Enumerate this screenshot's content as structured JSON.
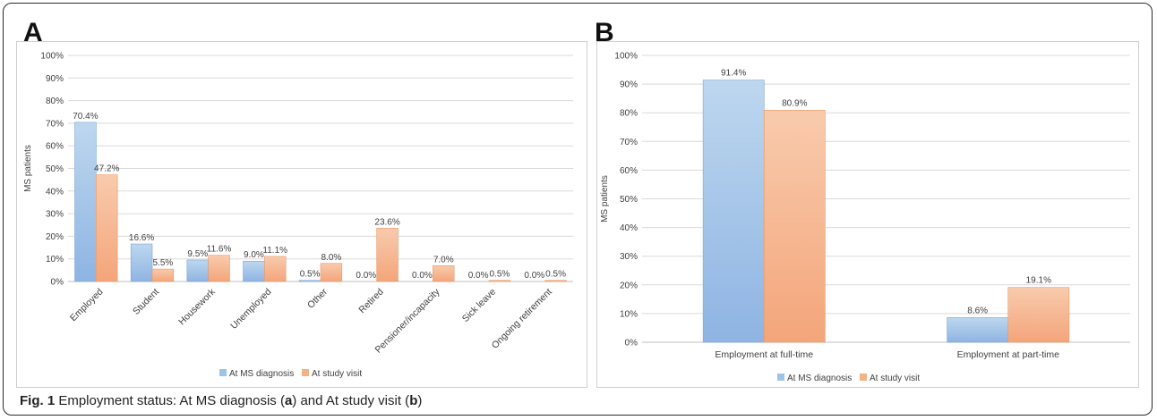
{
  "chart_data": [
    {
      "panel": "A",
      "type": "bar",
      "ylabel": "MS patients",
      "ylim": [
        0,
        100
      ],
      "y_ticks": [
        "0%",
        "10%",
        "20%",
        "30%",
        "40%",
        "50%",
        "60%",
        "70%",
        "80%",
        "90%",
        "100%"
      ],
      "categories": [
        "Employed",
        "Student",
        "Housework",
        "Unemployed",
        "Other",
        "Retired",
        "Pensioner/incapacity",
        "Sick leave",
        "Ongoing retirement"
      ],
      "series": [
        {
          "name": "At MS diagnosis",
          "color": "#9dc3e6",
          "values": [
            70.4,
            16.6,
            9.5,
            9.0,
            0.5,
            0.0,
            0.0,
            0.0,
            0.0
          ],
          "labels": [
            "70.4%",
            "16.6%",
            "9.5%",
            "9.0%",
            "0.5%",
            "0.0%",
            "0.0%",
            "0.0%",
            "0.0%"
          ]
        },
        {
          "name": "At study visit",
          "color": "#f4b183",
          "values": [
            47.2,
            5.5,
            11.6,
            11.1,
            8.0,
            23.6,
            7.0,
            0.5,
            0.5
          ],
          "labels": [
            "47.2%",
            "5.5%",
            "11.6%",
            "11.1%",
            "8.0%",
            "23.6%",
            "7.0%",
            "0.5%",
            "0.5%"
          ]
        }
      ],
      "legend_position": "bottom",
      "grid": true
    },
    {
      "panel": "B",
      "type": "bar",
      "ylabel": "MS patients",
      "ylim": [
        0,
        100
      ],
      "y_ticks": [
        "0%",
        "10%",
        "20%",
        "30%",
        "40%",
        "50%",
        "60%",
        "70%",
        "80%",
        "90%",
        "100%"
      ],
      "categories": [
        "Employment at full-time",
        "Employment at part-time"
      ],
      "series": [
        {
          "name": "At MS diagnosis",
          "color": "#9dc3e6",
          "values": [
            91.4,
            8.6
          ],
          "labels": [
            "91.4%",
            "8.6%"
          ]
        },
        {
          "name": "At study visit",
          "color": "#f4b183",
          "values": [
            80.9,
            19.1
          ],
          "labels": [
            "80.9%",
            "19.1%"
          ]
        }
      ],
      "legend_position": "bottom",
      "grid": true
    }
  ],
  "panels": {
    "a": "A",
    "b": "B"
  },
  "caption": {
    "prefix": "Fig. 1",
    "text1": " Employment status: At MS diagnosis (",
    "a": "a",
    "text2": ") and At study visit (",
    "b": "b",
    "text3": ")"
  }
}
